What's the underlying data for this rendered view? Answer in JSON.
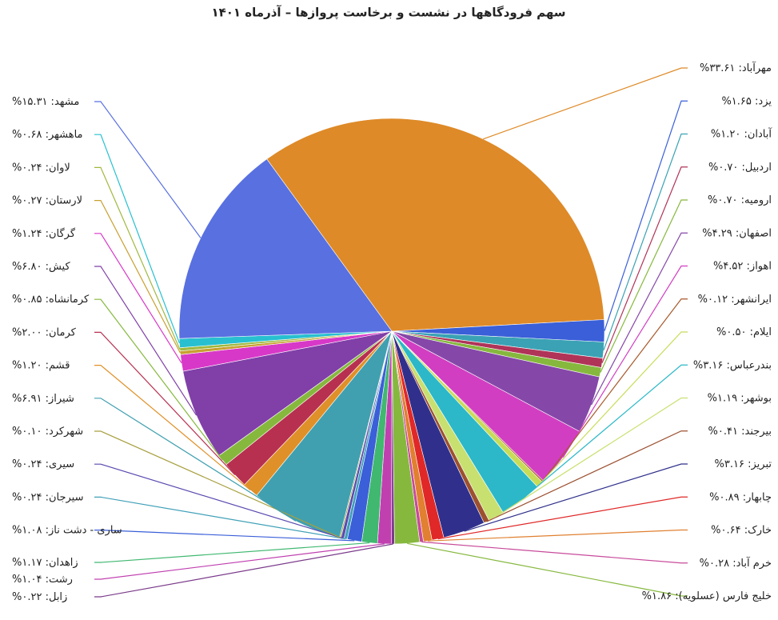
{
  "chart_data": {
    "type": "pie",
    "title": "سهم فرودگاهها در نشست و برخاست پروازها – آذرماه ۱۴۰۱",
    "categories": [
      "مهرآباد",
      "یزد",
      "آبادان",
      "اردبیل",
      "ارومیه",
      "اصفهان",
      "اهواز",
      "ایرانشهر",
      "ایلام",
      "بندرعباس",
      "بوشهر",
      "بیرجند",
      "تبریز",
      "چابهار",
      "خارک",
      "خرم آباد",
      "خلیج فارس (عسلویه)",
      "زابل",
      "رشت",
      "زاهدان",
      "ساری - دشت ناز",
      "سیرجان",
      "سیری",
      "شهرکرد",
      "شیراز",
      "قشم",
      "کرمان",
      "کرمانشاه",
      "کیش",
      "گرگان",
      "لارستان",
      "لاوان",
      "ماهشهر",
      "مشهد"
    ],
    "values": [
      33.61,
      1.65,
      1.2,
      0.7,
      0.7,
      4.29,
      4.52,
      0.12,
      0.5,
      3.16,
      1.19,
      0.41,
      3.16,
      0.89,
      0.64,
      0.28,
      1.86,
      0.22,
      1.04,
      1.17,
      1.08,
      0.24,
      0.24,
      0.1,
      6.91,
      1.2,
      2.0,
      0.85,
      6.8,
      1.24,
      0.27,
      0.24,
      0.68,
      15.31
    ],
    "value_labels": [
      ": ۳۳.۶۱%",
      ": ۱.۶۵%",
      ": ۱.۲۰%",
      ": ۰.۷۰%",
      ": ۰.۷۰%",
      ": ۴.۲۹%",
      ": ۴.۵۲%",
      ": ۰.۱۲%",
      ": ۰.۵۰%",
      ": ۳.۱۶%",
      ": ۱.۱۹%",
      ": ۰.۴۱%",
      ": ۳.۱۶%",
      ": ۰.۸۹%",
      ": ۰.۶۴%",
      ": ۰.۲۸%",
      ": ۱.۸۶%",
      ": ۰.۲۲%",
      ": ۱.۰۴%",
      ": ۱.۱۷%",
      ": ۱.۰۸%",
      ": ۰.۲۴%",
      ": ۰.۲۴%",
      ": ۰.۱۰%",
      ": ۶.۹۱%",
      ": ۱.۲۰%",
      ": ۲.۰۰%",
      ": ۰.۸۵%",
      ": ۶.۸۰%",
      ": ۱.۲۴%",
      ": ۰.۲۷%",
      ": ۰.۲۴%",
      ": ۰.۶۸%",
      ": ۱۵.۳۱%"
    ],
    "colors": [
      "#de8a28",
      "#3a5fd8",
      "#3aa2b4",
      "#b03458",
      "#86b83e",
      "#8548a8",
      "#d23ec2",
      "#a8582a",
      "#c8dc58",
      "#2cb8c8",
      "#c8e070",
      "#9c5030",
      "#30308c",
      "#e02828",
      "#e08030",
      "#c84a9a",
      "#86b83e",
      "#7a3a8a",
      "#c040b0",
      "#40b870",
      "#3a5fd8",
      "#40a0b8",
      "#5a4ab0",
      "#a8a040",
      "#40a0b0",
      "#e09028",
      "#b83050",
      "#86b83e",
      "#8040a8",
      "#d838c8",
      "#c8a030",
      "#a0b840",
      "#28c0d0",
      "#5870e0"
    ]
  }
}
